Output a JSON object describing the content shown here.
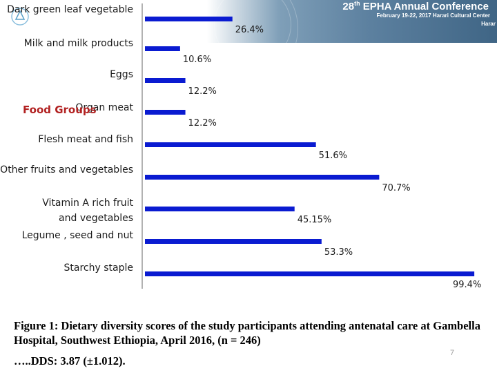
{
  "header": {
    "conference_num": "28",
    "conference_sup": "th",
    "conference_title": "EPHA Annual Conference",
    "conference_dates": "February 19-22, 2017  Harari Cultural Center",
    "conference_city": "Harar"
  },
  "chart_data": {
    "type": "bar",
    "orientation": "horizontal",
    "ylabel": "Food Groups",
    "categories": [
      "Dark green leaf  vegetable",
      "Milk and milk products",
      "Eggs",
      "Organ meat",
      "Flesh meat and fish",
      "Other  fruits  and vegetables",
      "Vitamin A rich fruit and vegetables",
      "Legume , seed and nut",
      "Starchy staple"
    ],
    "values": [
      26.4,
      10.6,
      12.2,
      12.2,
      51.6,
      70.7,
      45.15,
      53.3,
      99.4
    ],
    "data_labels": [
      "26.4%",
      "10.6%",
      "12.2%",
      "12.2%",
      "51.6%",
      "70.7%",
      "45.15%",
      "53.3%",
      "99.4%"
    ],
    "xlim": [
      0,
      100
    ],
    "bar_color": "#0a1bd1",
    "label_color": "#b22222",
    "grid": false,
    "legend": "none"
  },
  "caption": "Figure 1:  Dietary diversity scores of the study participants attending antenatal care at Gambella Hospital, Southwest Ethiopia,  April 2016, (n = 246)",
  "dds_note": "…..DDS: 3.87 (±1.012).",
  "page_number": "7"
}
